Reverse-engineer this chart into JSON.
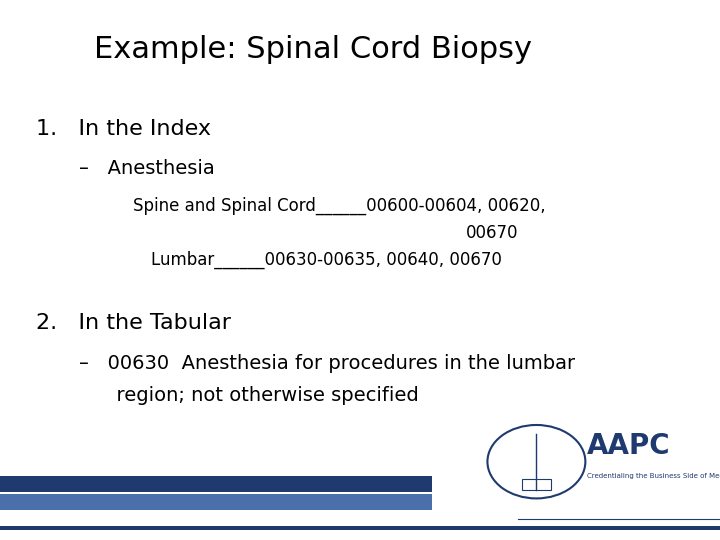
{
  "title": "Example: Spinal Cord Biopsy",
  "bg_color": "#ffffff",
  "text_color": "#000000",
  "title_fontsize": 22,
  "item1_heading": "1.   In the Index",
  "item1_sub": "–   Anesthesia",
  "item1_detail1": "Spine and Spinal Cord______00600-00604, 00620,",
  "item1_detail2": "00670",
  "item1_detail3": "Lumbar______00630-00635, 00640, 00670",
  "item2_heading": "2.   In the Tabular",
  "item2_sub": "–   00630  Anesthesia for procedures in the lumbar",
  "item2_sub2": "      region; not otherwise specified",
  "bar_color1": "#1e3a6e",
  "bar_color2": "#4a6faa",
  "heading_fontsize": 16,
  "sub_fontsize": 14,
  "detail_fontsize": 12
}
